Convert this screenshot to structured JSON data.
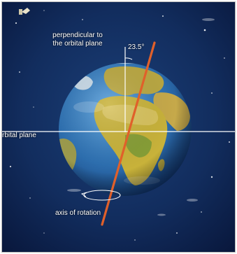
{
  "diagram": {
    "labels": {
      "perpendicular_line1": "perpendicular to",
      "perpendicular_line2": "the orbital plane",
      "tilt_angle": "23.5°",
      "orbital_plane": "rbital plane",
      "axis_of_rotation": "axis of rotation"
    },
    "tilt_degrees": 23.5,
    "colors": {
      "space": "#0d2247",
      "ocean": "#2d6fb0",
      "land": "#c8b23a",
      "axis": "#e0602a",
      "lines": "#ffffff"
    }
  }
}
